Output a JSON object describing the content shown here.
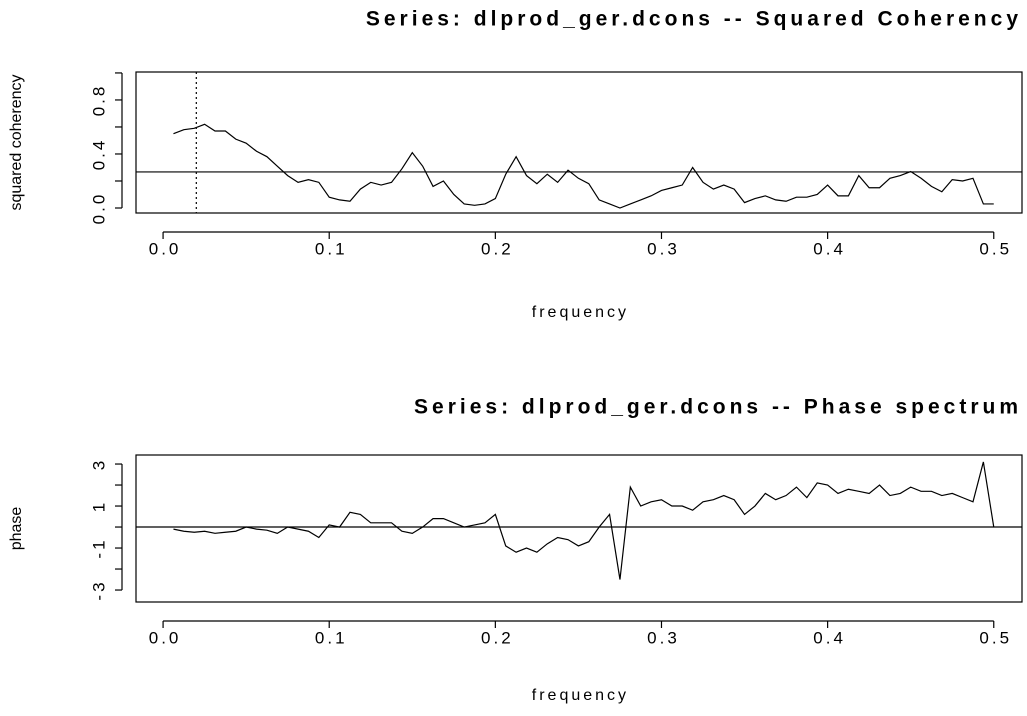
{
  "chart_data": [
    {
      "type": "line",
      "title": "Series: dlprod_ger.dcons -- Squared Coherency",
      "x_label": "frequency",
      "y_label": "squared coherency",
      "color": "#000000",
      "x": [
        0.00625,
        0.0125,
        0.01875,
        0.025,
        0.03125,
        0.0375,
        0.04375,
        0.05,
        0.05625,
        0.0625,
        0.06875,
        0.075,
        0.08125,
        0.0875,
        0.09375,
        0.1,
        0.10625,
        0.1125,
        0.11875,
        0.125,
        0.13125,
        0.1375,
        0.14375,
        0.15,
        0.15625,
        0.1625,
        0.16875,
        0.175,
        0.18125,
        0.1875,
        0.19375,
        0.2,
        0.20625,
        0.2125,
        0.21875,
        0.225,
        0.23125,
        0.2375,
        0.24375,
        0.25,
        0.25625,
        0.2625,
        0.26875,
        0.275,
        0.28125,
        0.2875,
        0.29375,
        0.3,
        0.30625,
        0.3125,
        0.31875,
        0.325,
        0.33125,
        0.3375,
        0.34375,
        0.35,
        0.35625,
        0.3625,
        0.36875,
        0.375,
        0.38125,
        0.3875,
        0.39375,
        0.4,
        0.40625,
        0.4125,
        0.41875,
        0.425,
        0.43125,
        0.4375,
        0.44375,
        0.45,
        0.45625,
        0.4625,
        0.46875,
        0.475,
        0.48125,
        0.4875,
        0.49375,
        0.5
      ],
      "values": [
        0.55,
        0.58,
        0.59,
        0.62,
        0.57,
        0.57,
        0.51,
        0.48,
        0.42,
        0.38,
        0.31,
        0.24,
        0.19,
        0.21,
        0.19,
        0.08,
        0.06,
        0.05,
        0.14,
        0.19,
        0.17,
        0.19,
        0.29,
        0.41,
        0.31,
        0.16,
        0.2,
        0.1,
        0.03,
        0.02,
        0.03,
        0.07,
        0.25,
        0.38,
        0.24,
        0.18,
        0.25,
        0.19,
        0.28,
        0.22,
        0.18,
        0.06,
        0.03,
        0.0,
        0.03,
        0.06,
        0.09,
        0.13,
        0.15,
        0.17,
        0.3,
        0.19,
        0.14,
        0.17,
        0.14,
        0.04,
        0.07,
        0.09,
        0.06,
        0.05,
        0.08,
        0.08,
        0.1,
        0.17,
        0.09,
        0.09,
        0.24,
        0.15,
        0.15,
        0.22,
        0.24,
        0.27,
        0.22,
        0.16,
        0.12,
        0.21,
        0.2,
        0.22,
        0.03,
        0.03
      ],
      "xlim": [
        -0.0163,
        0.517
      ],
      "ylim": [
        -0.037,
        1.007
      ],
      "xticks": [
        {
          "value": 0,
          "label": "0.0"
        },
        0.1,
        0.2,
        0.3,
        0.4,
        0.5
      ],
      "yticks": [
        {
          "value": 0,
          "label": "0.0"
        },
        0.4,
        0.8
      ],
      "yminorticks": [
        0.2,
        0.6,
        1
      ],
      "hline": 0.267,
      "vline": 0.02
    },
    {
      "type": "line",
      "title": "Series: dlprod_ger.dcons -- Phase spectrum",
      "x_label": "frequency",
      "y_label": "phase",
      "color": "#000000",
      "x": [
        0.00625,
        0.0125,
        0.01875,
        0.025,
        0.03125,
        0.0375,
        0.04375,
        0.05,
        0.05625,
        0.0625,
        0.06875,
        0.075,
        0.08125,
        0.0875,
        0.09375,
        0.1,
        0.10625,
        0.1125,
        0.11875,
        0.125,
        0.13125,
        0.1375,
        0.14375,
        0.15,
        0.15625,
        0.1625,
        0.16875,
        0.175,
        0.18125,
        0.1875,
        0.19375,
        0.2,
        0.20625,
        0.2125,
        0.21875,
        0.225,
        0.23125,
        0.2375,
        0.24375,
        0.25,
        0.25625,
        0.2625,
        0.26875,
        0.275,
        0.28125,
        0.2875,
        0.29375,
        0.3,
        0.30625,
        0.3125,
        0.31875,
        0.325,
        0.33125,
        0.3375,
        0.34375,
        0.35,
        0.35625,
        0.3625,
        0.36875,
        0.375,
        0.38125,
        0.3875,
        0.39375,
        0.4,
        0.40625,
        0.4125,
        0.41875,
        0.425,
        0.43125,
        0.4375,
        0.44375,
        0.45,
        0.45625,
        0.4625,
        0.46875,
        0.475,
        0.48125,
        0.4875,
        0.49375,
        0.5
      ],
      "values": [
        -0.1,
        -0.2,
        -0.25,
        -0.2,
        -0.3,
        -0.25,
        -0.2,
        0.0,
        -0.1,
        -0.15,
        -0.3,
        0.0,
        -0.1,
        -0.2,
        -0.5,
        0.1,
        0.0,
        0.7,
        0.6,
        0.2,
        0.2,
        0.2,
        -0.2,
        -0.3,
        0.0,
        0.4,
        0.4,
        0.2,
        0.0,
        0.1,
        0.2,
        0.6,
        -0.9,
        -1.2,
        -1.0,
        -1.2,
        -0.8,
        -0.5,
        -0.6,
        -0.9,
        -0.7,
        0.0,
        0.6,
        -2.5,
        1.9,
        1.0,
        1.2,
        1.3,
        1.0,
        1.0,
        0.8,
        1.2,
        1.3,
        1.5,
        1.3,
        0.6,
        1.0,
        1.6,
        1.3,
        1.5,
        1.9,
        1.4,
        2.1,
        2.0,
        1.6,
        1.8,
        1.7,
        1.6,
        2.0,
        1.5,
        1.6,
        1.9,
        1.7,
        1.7,
        1.5,
        1.6,
        1.4,
        1.2,
        3.1,
        0.0
      ],
      "xlim": [
        -0.0163,
        0.517
      ],
      "ylim": [
        -3.57,
        3.43
      ],
      "xticks": [
        {
          "value": 0,
          "label": "0.0"
        },
        0.1,
        0.2,
        0.3,
        0.4,
        0.5
      ],
      "yticks": [
        3,
        1,
        -1,
        -3
      ],
      "yminorticks": [
        2,
        0,
        -2
      ],
      "hline": 0
    }
  ]
}
